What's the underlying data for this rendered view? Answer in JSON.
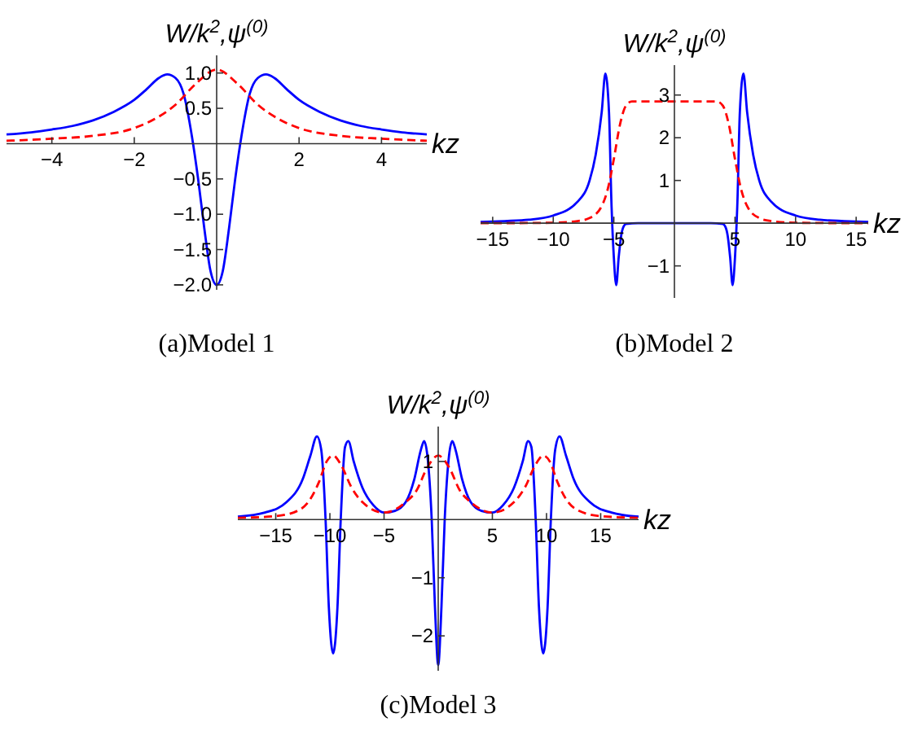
{
  "chart_data": [
    {
      "type": "line",
      "title": "(a)Model 1",
      "xlabel": "kz",
      "ylabel": "W/k$^{2}$,ψ$^{(0)}$",
      "xlim": [
        -5.1,
        5.1
      ],
      "ylim": [
        -2.07,
        1.25
      ],
      "xticks": [
        {
          "value": -4,
          "label": "−4"
        },
        {
          "value": -2,
          "label": "−2"
        },
        2,
        4
      ],
      "yticks": [
        {
          "value": -2,
          "label": "−2.0"
        },
        {
          "value": -1.5,
          "label": "−1.5"
        },
        {
          "value": -1,
          "label": "−1.0"
        },
        {
          "value": -0.5,
          "label": "−0.5"
        },
        0.5,
        {
          "value": 1,
          "label": "1.0"
        }
      ],
      "series": [
        {
          "color": "#0000ff",
          "line_style": "solid",
          "x": [
            -5.1,
            -4.5,
            -4,
            -3.5,
            -3,
            -2.5,
            -2,
            -1.7,
            -1.4,
            -1.2,
            -1.0,
            -0.8,
            -0.6,
            -0.45,
            -0.3,
            -0.15,
            0,
            0.15,
            0.3,
            0.45,
            0.6,
            0.8,
            1.0,
            1.2,
            1.4,
            1.7,
            2,
            2.5,
            3,
            3.5,
            4,
            4.5,
            5.1
          ],
          "values": [
            0.13,
            0.16,
            0.2,
            0.25,
            0.33,
            0.45,
            0.62,
            0.77,
            0.93,
            0.98,
            0.93,
            0.7,
            0.1,
            -0.5,
            -1.2,
            -1.8,
            -2.0,
            -1.8,
            -1.2,
            -0.5,
            0.1,
            0.7,
            0.93,
            0.98,
            0.93,
            0.77,
            0.62,
            0.45,
            0.33,
            0.25,
            0.2,
            0.16,
            0.13
          ]
        },
        {
          "color": "#ff0000",
          "line_style": "dashed",
          "x": [
            -5.1,
            -4,
            -3,
            -2,
            -1.5,
            -1,
            -0.5,
            0,
            0.5,
            1,
            1.5,
            2,
            3,
            4,
            5.1
          ],
          "values": [
            0.04,
            0.07,
            0.11,
            0.22,
            0.35,
            0.55,
            0.85,
            1.05,
            0.85,
            0.55,
            0.35,
            0.22,
            0.11,
            0.07,
            0.04
          ]
        }
      ]
    },
    {
      "type": "line",
      "title": "(b)Model 2",
      "xlabel": "kz",
      "ylabel": "W/k$^{2}$,ψ$^{(0)}$",
      "xlim": [
        -16,
        16
      ],
      "ylim": [
        -1.75,
        3.7
      ],
      "xticks": [
        {
          "value": -15,
          "label": "−15"
        },
        {
          "value": -10,
          "label": "−10"
        },
        {
          "value": -5,
          "label": "−5"
        },
        5,
        10,
        15
      ],
      "yticks": [
        {
          "value": -1,
          "label": "−1"
        },
        1,
        2,
        3
      ],
      "series": [
        {
          "color": "#0000ff",
          "line_style": "solid",
          "x": [
            -16,
            -14,
            -12,
            -10,
            -8,
            -7,
            -6.5,
            -6,
            -5.7,
            -5.4,
            -5.2,
            -5,
            -4.8,
            -4.6,
            -4.4,
            -4.2,
            -4,
            -3,
            0,
            3,
            4,
            4.2,
            4.4,
            4.6,
            4.8,
            5,
            5.2,
            5.4,
            5.7,
            6,
            6.5,
            7,
            8,
            10,
            12,
            14,
            16
          ],
          "values": [
            0.03,
            0.05,
            0.08,
            0.18,
            0.5,
            1.0,
            1.6,
            2.6,
            3.5,
            2.6,
            0.5,
            -0.8,
            -1.45,
            -0.8,
            -0.3,
            -0.08,
            -0.02,
            0,
            0,
            0,
            -0.02,
            -0.08,
            -0.3,
            -0.8,
            -1.45,
            -0.8,
            0.5,
            2.6,
            3.5,
            2.6,
            1.6,
            1.0,
            0.5,
            0.18,
            0.08,
            0.05,
            0.03
          ]
        },
        {
          "color": "#ff0000",
          "line_style": "dashed",
          "x": [
            -16,
            -10,
            -8,
            -7,
            -6,
            -5.5,
            -5,
            -4.5,
            -4,
            -3.5,
            0,
            3.5,
            4,
            4.5,
            5,
            5.5,
            6,
            7,
            8,
            10,
            16
          ],
          "values": [
            0.0,
            0.01,
            0.05,
            0.12,
            0.4,
            0.8,
            1.5,
            2.3,
            2.75,
            2.85,
            2.85,
            2.85,
            2.75,
            2.3,
            1.5,
            0.8,
            0.4,
            0.12,
            0.05,
            0.01,
            0.0
          ]
        }
      ]
    },
    {
      "type": "line",
      "title": "(c)Model 3",
      "xlabel": "kz",
      "ylabel": "W/k$^{2}$,ψ$^{(0)}$",
      "xlim": [
        -18.5,
        18.5
      ],
      "ylim": [
        -2.6,
        1.6
      ],
      "xticks": [
        {
          "value": -15,
          "label": "−15"
        },
        {
          "value": -10,
          "label": "−10"
        },
        {
          "value": -5,
          "label": "−5"
        },
        5,
        10,
        15
      ],
      "yticks": [
        {
          "value": -2,
          "label": "−2"
        },
        {
          "value": -1,
          "label": "−1"
        },
        1
      ],
      "series": [
        {
          "color": "#0000ff",
          "line_style": "solid",
          "x": [
            -18.5,
            -16,
            -14,
            -12.5,
            -11.8,
            -11.2,
            -10.8,
            -10.4,
            -10.1,
            -9.7,
            -9.3,
            -9.0,
            -8.6,
            -8.3,
            -7.8,
            -7,
            -6,
            -5,
            -4,
            -3,
            -2.2,
            -1.6,
            -1.3,
            -1.0,
            -0.6,
            -0.3,
            0,
            0.3,
            0.6,
            1.0,
            1.3,
            1.6,
            2.2,
            3,
            4,
            5,
            6,
            7,
            7.8,
            8.3,
            8.6,
            9.0,
            9.3,
            9.7,
            10.1,
            10.4,
            10.8,
            11.2,
            11.8,
            12.5,
            14,
            16,
            18.5
          ],
          "values": [
            0.05,
            0.12,
            0.3,
            0.7,
            1.1,
            1.43,
            1.2,
            0.0,
            -1.5,
            -2.3,
            -1.5,
            0.0,
            1.25,
            1.35,
            1.0,
            0.55,
            0.25,
            0.12,
            0.15,
            0.3,
            0.7,
            1.2,
            1.35,
            1.1,
            0.0,
            -1.5,
            -2.5,
            -1.5,
            0.0,
            1.1,
            1.35,
            1.2,
            0.7,
            0.3,
            0.15,
            0.12,
            0.25,
            0.55,
            1.0,
            1.35,
            1.25,
            0.0,
            -1.5,
            -2.3,
            -1.5,
            0.0,
            1.2,
            1.43,
            1.1,
            0.7,
            0.3,
            0.12,
            0.05
          ]
        },
        {
          "color": "#ff0000",
          "line_style": "dashed",
          "x": [
            -18.5,
            -15,
            -13,
            -12,
            -11,
            -10.3,
            -9.7,
            -9,
            -8,
            -7,
            -5,
            -3,
            -2,
            -1,
            0,
            1,
            2,
            3,
            5,
            7,
            8,
            9,
            9.7,
            10.3,
            11,
            12,
            13,
            15,
            18.5
          ],
          "values": [
            0.03,
            0.06,
            0.15,
            0.3,
            0.65,
            1.0,
            1.1,
            0.95,
            0.55,
            0.3,
            0.12,
            0.3,
            0.5,
            0.9,
            1.1,
            0.9,
            0.5,
            0.3,
            0.12,
            0.3,
            0.55,
            0.95,
            1.1,
            1.0,
            0.65,
            0.3,
            0.15,
            0.06,
            0.03
          ]
        }
      ]
    }
  ]
}
